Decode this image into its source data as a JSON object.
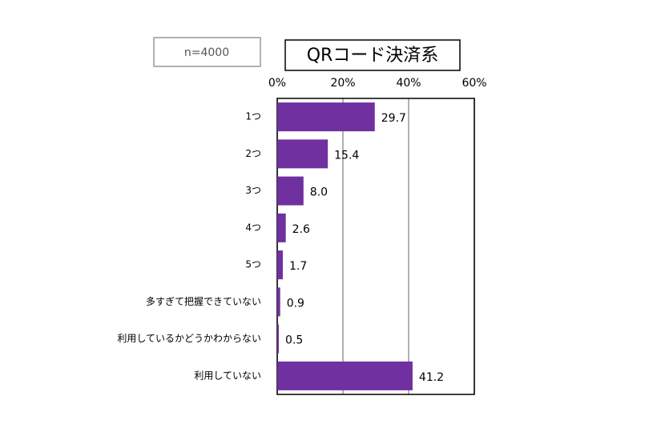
{
  "chart_data": {
    "type": "bar",
    "title": "QRコード決済系",
    "subtitle": "n=4000",
    "categories": [
      "1つ",
      "2つ",
      "3つ",
      "4つ",
      "5つ",
      "多すぎて把握できていない",
      "利用しているかどうかわからない",
      "利用していない"
    ],
    "values": [
      29.7,
      15.4,
      8.0,
      2.6,
      1.7,
      0.9,
      0.5,
      41.2
    ],
    "value_labels": [
      "29.7",
      "15.4",
      "8.0",
      "2.6",
      "1.7",
      "0.9",
      "0.5",
      "41.2"
    ],
    "color": "#7030a0",
    "xlim": [
      0,
      60
    ],
    "xticks": [
      {
        "value": 0,
        "label": "0%"
      },
      {
        "value": 20,
        "label": "20%"
      },
      {
        "value": 40,
        "label": "40%"
      },
      {
        "value": 60,
        "label": "60%"
      }
    ],
    "grid": true
  }
}
